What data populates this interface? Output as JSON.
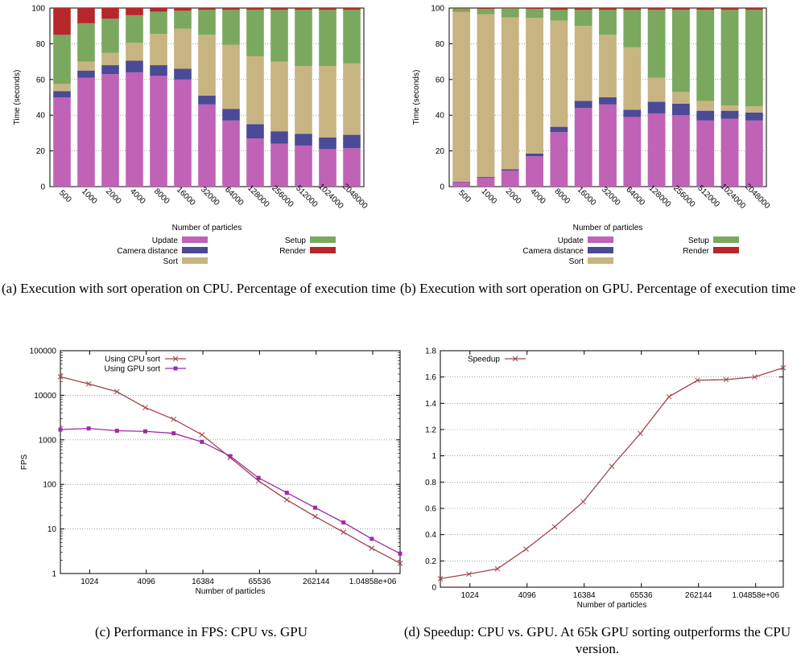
{
  "captions": {
    "a": "(a) Execution with sort operation on CPU. Percentage of execution time",
    "b": "(b) Execution with sort operation on GPU. Percentage of execution time",
    "c": "(c) Performance in FPS: CPU vs. GPU",
    "d": "(d) Speedup: CPU vs. GPU. At 65k GPU sorting outperforms the CPU version."
  },
  "chart_data": [
    {
      "type": "bar",
      "stacked": true,
      "xlabel": "Number of particles",
      "ylabel": "Time (seconds)",
      "ylim": [
        0,
        100
      ],
      "yticks": [
        0,
        20,
        40,
        60,
        80,
        100
      ],
      "grid": true,
      "legend_position": "bottom",
      "categories": [
        "500",
        "1000",
        "2000",
        "4000",
        "8000",
        "16000",
        "32000",
        "64000",
        "128000",
        "256000",
        "512000",
        "1024000",
        "2048000"
      ],
      "series": [
        {
          "name": "Update",
          "color": "#c062b6",
          "values": [
            50,
            61,
            63,
            64,
            62,
            60,
            46,
            37,
            27,
            24,
            23,
            21,
            21.5
          ]
        },
        {
          "name": "Camera distance",
          "color": "#4b4a96",
          "values": [
            3.5,
            4,
            5,
            6.5,
            6,
            6,
            5,
            6.5,
            8,
            7,
            6.5,
            6.5,
            7.5
          ]
        },
        {
          "name": "Sort",
          "color": "#c8b482",
          "values": [
            4,
            5,
            7,
            10,
            17.5,
            22.5,
            34,
            36,
            38,
            39,
            38,
            40,
            40
          ]
        },
        {
          "name": "Setup",
          "color": "#7aa85e",
          "values": [
            27.5,
            21.5,
            19,
            15.5,
            12.5,
            10,
            14,
            19.5,
            26,
            29,
            31.5,
            31.5,
            30
          ]
        },
        {
          "name": "Render",
          "color": "#b5272b",
          "values": [
            15,
            8.5,
            6,
            4,
            2,
            1.5,
            1,
            1,
            1,
            1,
            1,
            1,
            1
          ]
        }
      ]
    },
    {
      "type": "bar",
      "stacked": true,
      "xlabel": "Number of particles",
      "ylabel": "Time (seconds)",
      "ylim": [
        0,
        100
      ],
      "yticks": [
        0,
        20,
        40,
        60,
        80,
        100
      ],
      "grid": true,
      "legend_position": "bottom",
      "categories": [
        "500",
        "1000",
        "2000",
        "4000",
        "8000",
        "16000",
        "32000",
        "64000",
        "128000",
        "256000",
        "512000",
        "1024000",
        "2048000"
      ],
      "series": [
        {
          "name": "Update",
          "color": "#c062b6",
          "values": [
            2.5,
            5,
            9,
            17,
            30.5,
            44,
            46,
            39,
            41,
            40,
            37,
            38,
            37
          ]
        },
        {
          "name": "Camera distance",
          "color": "#4b4a96",
          "values": [
            0.3,
            0.5,
            0.7,
            1.5,
            3,
            4,
            4,
            4,
            6.5,
            6.5,
            5.5,
            4.5,
            4.5
          ]
        },
        {
          "name": "Sort",
          "color": "#c8b482",
          "values": [
            95,
            91,
            85,
            76,
            59.5,
            42,
            35,
            35,
            13.5,
            6.5,
            5.5,
            3,
            3.5
          ]
        },
        {
          "name": "Setup",
          "color": "#7aa85e",
          "values": [
            2,
            3,
            5,
            5,
            6,
            9,
            14,
            21,
            38,
            46,
            51,
            53.5,
            54
          ]
        },
        {
          "name": "Render",
          "color": "#b5272b",
          "values": [
            0.2,
            0.5,
            0.3,
            0.5,
            1,
            1,
            1,
            1,
            1,
            1,
            1,
            1,
            1
          ]
        }
      ]
    },
    {
      "type": "line",
      "xlabel": "Number of particles",
      "ylabel": "FPS",
      "xscale": "log2",
      "yscale": "log10",
      "xlim": [
        500,
        2048000
      ],
      "ylim": [
        1,
        100000
      ],
      "xticks": [
        1024,
        4096,
        16384,
        65536,
        262144,
        1048576
      ],
      "xtick_labels": [
        "1024",
        "4096",
        "16384",
        "65536",
        "262144",
        "1.04858e+06"
      ],
      "yticks": [
        1,
        10,
        100,
        1000,
        10000,
        100000
      ],
      "grid": true,
      "legend_position": "top-left",
      "x": [
        500,
        1000,
        2000,
        4000,
        8000,
        16000,
        32000,
        64000,
        128000,
        256000,
        512000,
        1024000,
        2048000
      ],
      "series": [
        {
          "name": "Using CPU sort",
          "color": "#a0454a",
          "marker": "x",
          "values": [
            26000,
            18000,
            12000,
            5300,
            2900,
            1300,
            400,
            120,
            45,
            19,
            8.5,
            3.7,
            1.7
          ]
        },
        {
          "name": "Using GPU sort",
          "color": "#a02aa8",
          "marker": "square",
          "values": [
            1700,
            1800,
            1600,
            1550,
            1400,
            900,
            430,
            140,
            65,
            30,
            14,
            6,
            2.8
          ]
        }
      ]
    },
    {
      "type": "line",
      "xlabel": "Number of particles",
      "ylabel": "",
      "xscale": "log2",
      "xlim": [
        500,
        2048000
      ],
      "ylim": [
        0,
        1.8
      ],
      "xticks": [
        1024,
        4096,
        16384,
        65536,
        262144,
        1048576
      ],
      "xtick_labels": [
        "1024",
        "4096",
        "16384",
        "65536",
        "262144",
        "1.04858e+06"
      ],
      "yticks": [
        0,
        0.2,
        0.4,
        0.6,
        0.8,
        1,
        1.2,
        1.4,
        1.6,
        1.8
      ],
      "grid": true,
      "legend_position": "top-left",
      "x": [
        500,
        1000,
        2000,
        4000,
        8000,
        16000,
        32000,
        64000,
        128000,
        256000,
        512000,
        1024000,
        2048000
      ],
      "series": [
        {
          "name": "Speedup",
          "color": "#a0454a",
          "marker": "x",
          "values": [
            0.065,
            0.1,
            0.14,
            0.29,
            0.46,
            0.65,
            0.92,
            1.17,
            1.45,
            1.575,
            1.58,
            1.6,
            1.67
          ]
        }
      ]
    }
  ]
}
